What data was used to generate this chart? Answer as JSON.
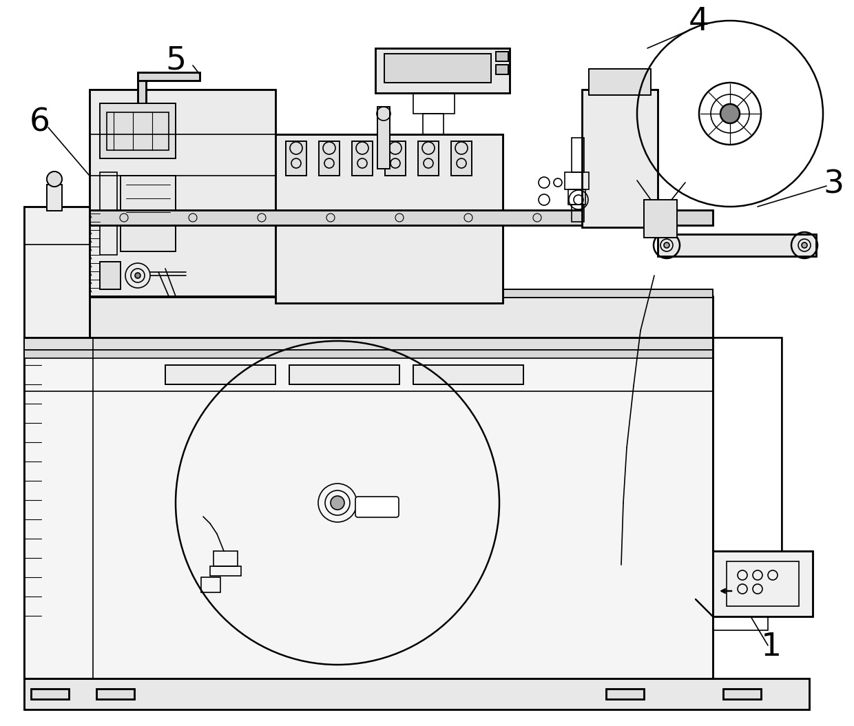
{
  "bg_color": "#ffffff",
  "line_color": "#000000",
  "line_width": 1.2,
  "fig_width": 12.4,
  "fig_height": 10.54,
  "label_fontsize": 34
}
